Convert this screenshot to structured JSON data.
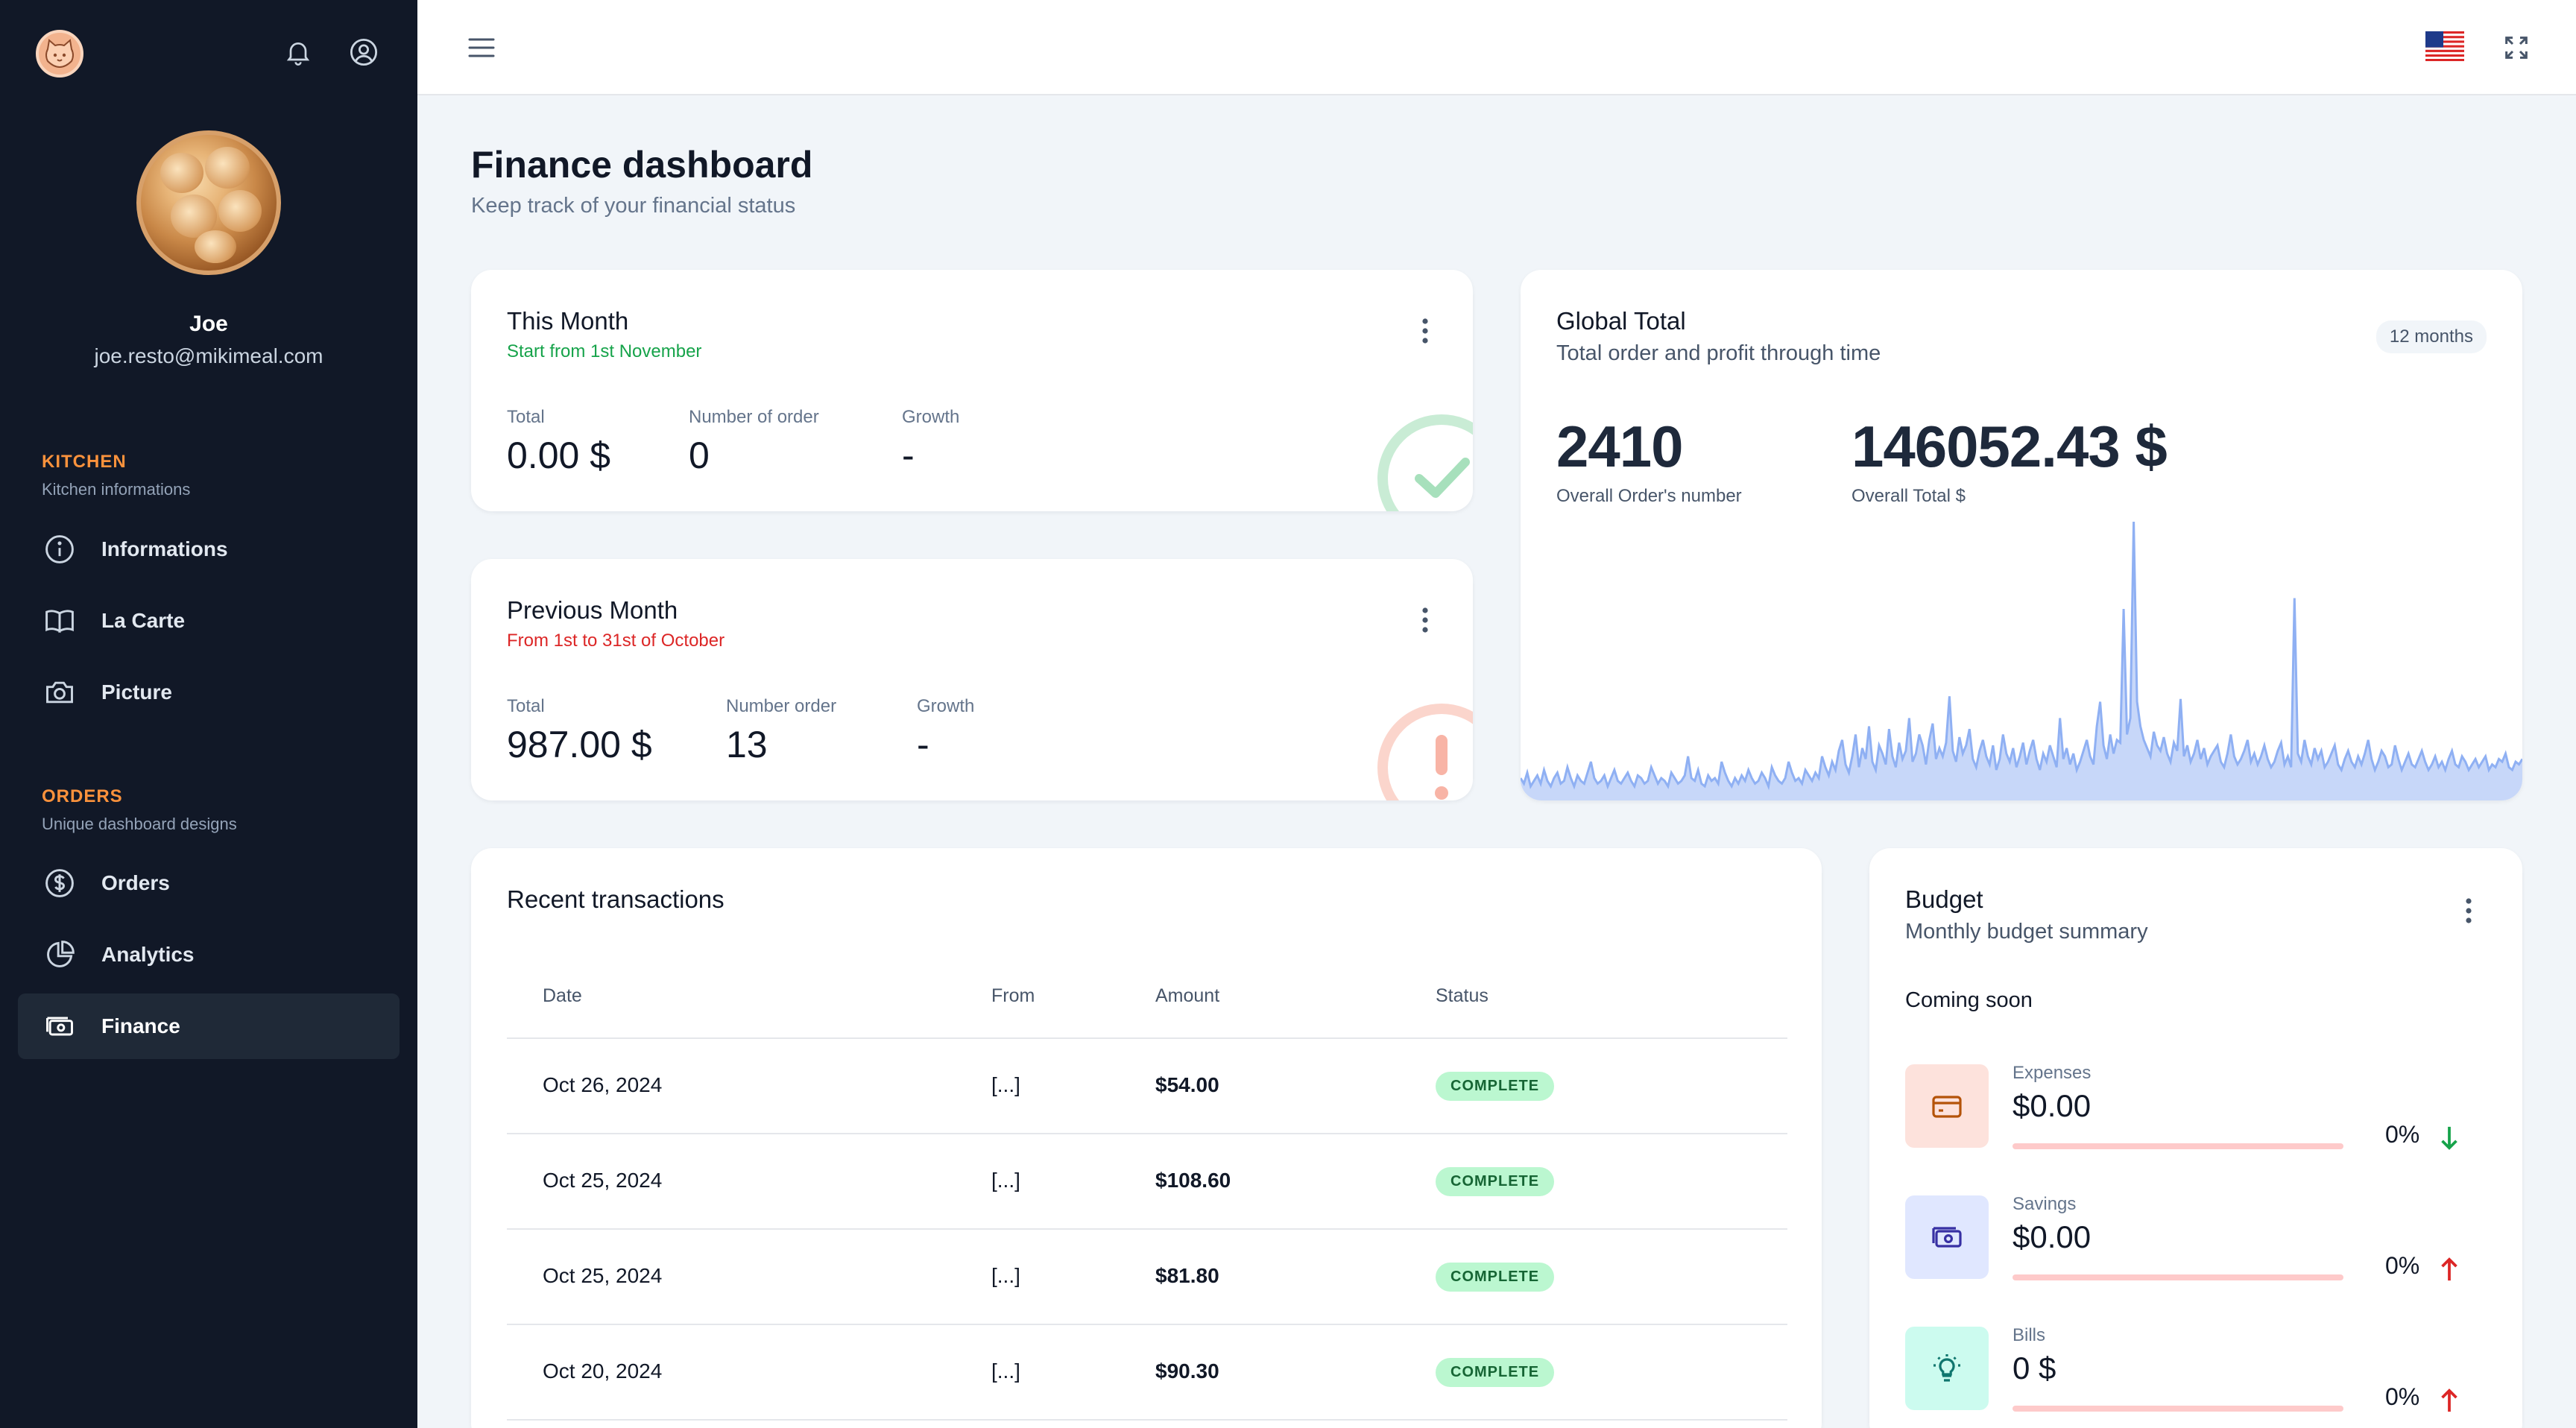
{
  "sidebar": {
    "user": {
      "name": "Joe",
      "email": "joe.resto@mikimeal.com"
    },
    "sections": [
      {
        "title": "KITCHEN",
        "subtitle": "Kitchen informations",
        "items": [
          {
            "label": "Informations",
            "icon": "info-icon"
          },
          {
            "label": "La Carte",
            "icon": "book-icon"
          },
          {
            "label": "Picture",
            "icon": "camera-icon"
          }
        ]
      },
      {
        "title": "ORDERS",
        "subtitle": "Unique dashboard designs",
        "items": [
          {
            "label": "Orders",
            "icon": "dollar-icon"
          },
          {
            "label": "Analytics",
            "icon": "pie-chart-icon"
          },
          {
            "label": "Finance",
            "icon": "cash-icon",
            "active": true
          }
        ]
      }
    ]
  },
  "header": {
    "title": "Finance dashboard",
    "subtitle": "Keep track of your financial status"
  },
  "this_month": {
    "title": "This Month",
    "subtitle": "Start from 1st November",
    "stats": [
      {
        "label": "Total",
        "value": "0.00 $"
      },
      {
        "label": "Number of order",
        "value": "0"
      },
      {
        "label": "Growth",
        "value": "-"
      }
    ]
  },
  "previous_month": {
    "title": "Previous Month",
    "subtitle": "From 1st to 31st of October",
    "stats": [
      {
        "label": "Total",
        "value": "987.00 $"
      },
      {
        "label": "Number order",
        "value": "13"
      },
      {
        "label": "Growth",
        "value": "-"
      }
    ]
  },
  "global_total": {
    "title": "Global Total",
    "subtitle": "Total order and profit through time",
    "period": "12 months",
    "orders": {
      "value": "2410",
      "label": "Overall Order's number"
    },
    "total": {
      "value": "146052.43 $",
      "label": "Overall Total $"
    }
  },
  "chart_data": {
    "type": "area",
    "values": [
      6,
      4,
      8,
      3,
      5,
      7,
      4,
      9,
      5,
      3,
      6,
      8,
      4,
      5,
      10,
      6,
      3,
      7,
      5,
      4,
      8,
      12,
      6,
      4,
      5,
      7,
      3,
      6,
      9,
      5,
      4,
      6,
      8,
      5,
      3,
      7,
      6,
      4,
      5,
      10,
      7,
      4,
      6,
      5,
      3,
      8,
      6,
      4,
      5,
      7,
      14,
      6,
      5,
      9,
      4,
      3,
      7,
      5,
      6,
      4,
      12,
      8,
      5,
      3,
      6,
      4,
      7,
      5,
      9,
      6,
      4,
      5,
      8,
      6,
      3,
      10,
      7,
      5,
      4,
      6,
      12,
      8,
      5,
      6,
      4,
      9,
      7,
      5,
      8,
      6,
      14,
      10,
      7,
      12,
      9,
      16,
      20,
      11,
      8,
      14,
      22,
      10,
      17,
      13,
      25,
      12,
      9,
      18,
      15,
      11,
      24,
      14,
      10,
      19,
      13,
      16,
      28,
      12,
      15,
      22,
      18,
      11,
      20,
      26,
      13,
      17,
      14,
      19,
      36,
      16,
      12,
      21,
      15,
      18,
      24,
      13,
      10,
      16,
      20,
      14,
      11,
      18,
      9,
      13,
      22,
      15,
      12,
      17,
      10,
      14,
      19,
      11,
      16,
      20,
      13,
      9,
      15,
      12,
      18,
      14,
      10,
      28,
      13,
      17,
      11,
      15,
      9,
      12,
      16,
      20,
      14,
      11,
      25,
      34,
      18,
      13,
      22,
      15,
      20,
      19,
      68,
      22,
      28,
      100,
      34,
      25,
      20,
      17,
      14,
      23,
      18,
      16,
      21,
      15,
      12,
      19,
      16,
      35,
      14,
      18,
      12,
      15,
      20,
      13,
      17,
      11,
      14,
      16,
      18,
      12,
      10,
      15,
      22,
      14,
      11,
      13,
      16,
      20,
      12,
      15,
      11,
      14,
      18,
      13,
      10,
      12,
      16,
      19,
      11,
      14,
      10,
      72,
      15,
      12,
      20,
      14,
      11,
      17,
      13,
      16,
      10,
      12,
      15,
      18,
      11,
      9,
      13,
      16,
      12,
      10,
      14,
      11,
      15,
      20,
      13,
      9,
      12,
      16,
      14,
      10,
      11,
      18,
      13,
      9,
      12,
      15,
      11,
      10,
      13,
      16,
      12,
      9,
      11,
      14,
      10,
      12,
      9,
      13,
      16,
      11,
      10,
      14,
      12,
      9,
      11,
      13,
      10,
      12,
      14,
      9,
      11,
      10,
      13,
      12,
      15,
      10,
      9,
      12,
      11,
      13
    ]
  },
  "transactions": {
    "title": "Recent transactions",
    "columns": [
      "Date",
      "From",
      "Amount",
      "Status"
    ],
    "rows": [
      {
        "date": "Oct 26, 2024",
        "from": "[...]",
        "amount": "$54.00",
        "status": "COMPLETE"
      },
      {
        "date": "Oct 25, 2024",
        "from": "[...]",
        "amount": "$108.60",
        "status": "COMPLETE"
      },
      {
        "date": "Oct 25, 2024",
        "from": "[...]",
        "amount": "$81.80",
        "status": "COMPLETE"
      },
      {
        "date": "Oct 20, 2024",
        "from": "[...]",
        "amount": "$90.30",
        "status": "COMPLETE"
      }
    ]
  },
  "budget": {
    "title": "Budget",
    "subtitle": "Monthly budget summary",
    "note": "Coming soon",
    "items": [
      {
        "label": "Expenses",
        "value": "$0.00",
        "percent": "0%",
        "trend": "down"
      },
      {
        "label": "Savings",
        "value": "$0.00",
        "percent": "0%",
        "trend": "up"
      },
      {
        "label": "Bills",
        "value": "0 $",
        "percent": "0%",
        "trend": "up"
      }
    ]
  },
  "colors": {
    "sidebar_bg": "#111827",
    "accent_orange": "#fb923c",
    "success_green": "#16a34a",
    "danger_red": "#dc2626",
    "chart_blue": "#93b4f5",
    "badge_green": "#bbf7d0"
  }
}
